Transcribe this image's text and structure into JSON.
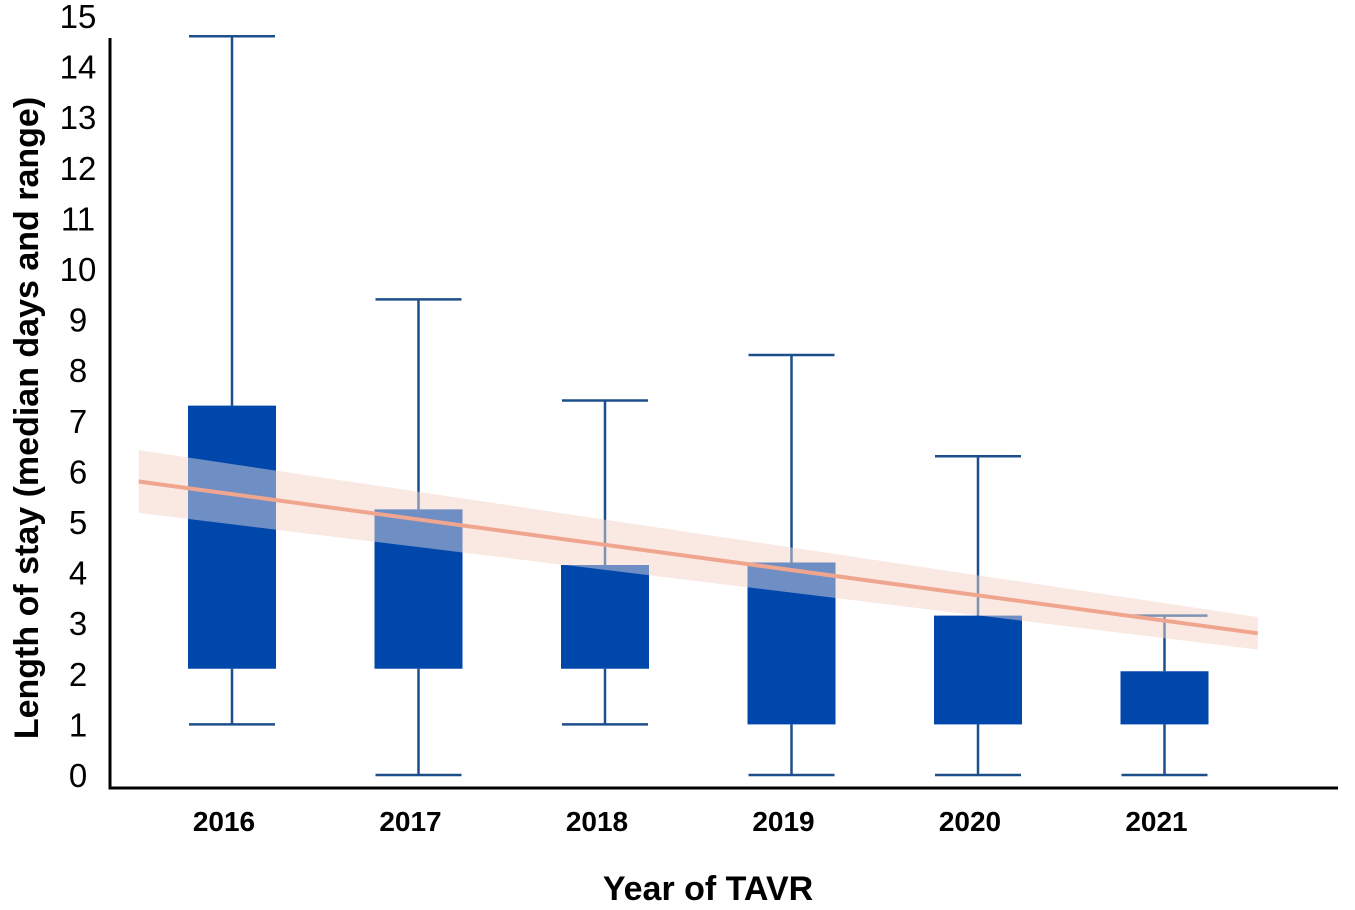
{
  "chart_data": {
    "type": "box",
    "title": "",
    "xlabel": "Year of TAVR",
    "ylabel": "Length of stay (median days and range)",
    "ylim": [
      0,
      15
    ],
    "yticks": [
      "0",
      "1",
      "2",
      "3",
      "4",
      "5",
      "6",
      "7",
      "8",
      "9",
      "10",
      "11",
      "12",
      "13",
      "14",
      "15"
    ],
    "categories": [
      "2016",
      "2017",
      "2018",
      "2019",
      "2020",
      "2021"
    ],
    "boxes": [
      {
        "year": "2016",
        "min": 1,
        "q1": 2.1,
        "q3": 7.3,
        "max": 14.6
      },
      {
        "year": "2017",
        "min": 0,
        "q1": 2.1,
        "q3": 5.25,
        "max": 9.4
      },
      {
        "year": "2018",
        "min": 1,
        "q1": 2.1,
        "q3": 4.15,
        "max": 7.4
      },
      {
        "year": "2019",
        "min": 0,
        "q1": 1,
        "q3": 4.2,
        "max": 8.3
      },
      {
        "year": "2020",
        "min": 0,
        "q1": 1,
        "q3": 3.15,
        "max": 6.3
      },
      {
        "year": "2021",
        "min": 0,
        "q1": 1,
        "q3": 2.05,
        "max": 3.15
      }
    ],
    "trendline": {
      "start": {
        "x": 2015.5,
        "y": 5.8
      },
      "end": {
        "x": 2021.5,
        "y": 2.8
      },
      "band_halfwidth_start": 0.62,
      "band_halfwidth_end": 0.32
    },
    "colors": {
      "box": "#0047ab",
      "whisker": "#1d4f8c",
      "trend": "#f0a58f",
      "band": "#f6c9bf",
      "axis": "#000000"
    }
  }
}
